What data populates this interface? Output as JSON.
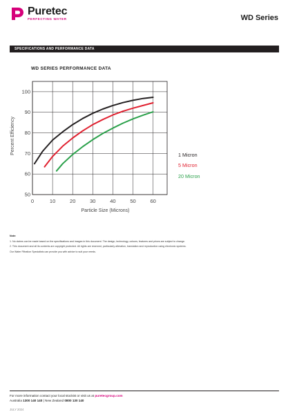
{
  "header": {
    "brand_name": "Puretec",
    "brand_tagline": "PERFECTING WATER",
    "series_title": "WD Series",
    "brand_color": "#d6007a"
  },
  "section": {
    "label": "SPECIFICATIONS AND PERFORMANCE DATA"
  },
  "chart_data": {
    "type": "line",
    "title": "WD SERIES PERFORMANCE DATA",
    "xlabel": "Particle Size (Microns)",
    "ylabel": "Percent Efficiency",
    "xlim": [
      0,
      67
    ],
    "ylim": [
      50,
      105
    ],
    "x_ticks": [
      0,
      10,
      20,
      30,
      40,
      50,
      60
    ],
    "y_ticks": [
      50,
      60,
      70,
      80,
      90,
      100
    ],
    "grid": true,
    "legend_placement": "right",
    "series": [
      {
        "name": "1 Micron",
        "color": "#231f20",
        "points": [
          [
            1,
            65
          ],
          [
            5,
            71
          ],
          [
            10,
            76.5
          ],
          [
            15,
            80.5
          ],
          [
            20,
            84
          ],
          [
            25,
            87
          ],
          [
            30,
            89.5
          ],
          [
            35,
            91.6
          ],
          [
            40,
            93.3
          ],
          [
            45,
            94.7
          ],
          [
            50,
            95.8
          ],
          [
            55,
            96.7
          ],
          [
            60,
            97.3
          ]
        ]
      },
      {
        "name": "5 Micron",
        "color": "#e0202f",
        "points": [
          [
            6,
            63.5
          ],
          [
            10,
            68.5
          ],
          [
            15,
            73.5
          ],
          [
            20,
            77.5
          ],
          [
            25,
            81
          ],
          [
            30,
            84
          ],
          [
            35,
            86.5
          ],
          [
            40,
            88.7
          ],
          [
            45,
            90.5
          ],
          [
            50,
            92
          ],
          [
            55,
            93.3
          ],
          [
            60,
            94.6
          ]
        ]
      },
      {
        "name": "20 Micron",
        "color": "#2aa04a",
        "points": [
          [
            12,
            61.5
          ],
          [
            15,
            65
          ],
          [
            20,
            69.5
          ],
          [
            25,
            73.3
          ],
          [
            30,
            76.7
          ],
          [
            35,
            79.7
          ],
          [
            40,
            82.3
          ],
          [
            45,
            84.7
          ],
          [
            50,
            86.8
          ],
          [
            55,
            88.6
          ],
          [
            60,
            90.2
          ]
        ]
      }
    ]
  },
  "notes": {
    "heading": "Note:",
    "items": [
      "1. No claims can be made based on the specifications and images in this document. The design, technology, colours, features and prices are subject to change.",
      "2. This document and all its contents are copyright protected. All rights are reserved, particularly alteration, translation and reproduction using electronic systems.",
      "Our Water Filtration Specialists can provide you with advice to suit your needs."
    ]
  },
  "footer": {
    "line1_prefix": "For more information contact your local stockist or visit us at ",
    "line1_site": "puretecgroup.com",
    "line2_label_au": "Australia ",
    "line2_phone_au": "1300 140 140",
    "line2_sep": " | New Zealand ",
    "line2_phone_nz": "0800 130 140",
    "date": "JULY 2024"
  }
}
